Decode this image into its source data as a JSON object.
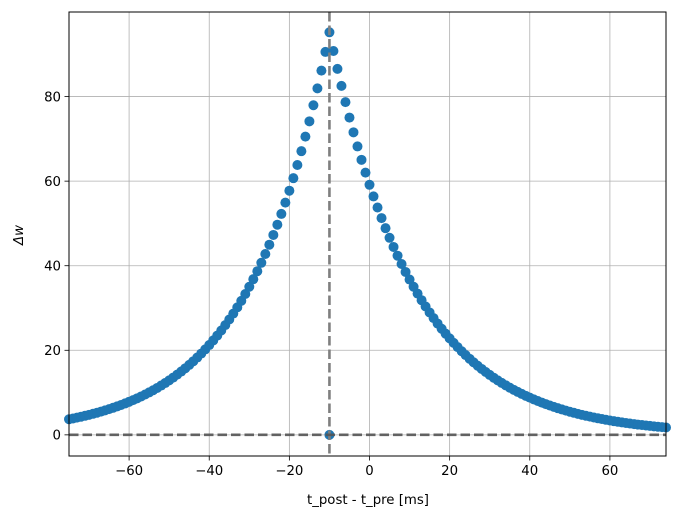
{
  "chart_data": {
    "type": "scatter",
    "title": "",
    "xlabel": "t_post - t_pre [ms]",
    "ylabel": "Δw",
    "xlim": [
      -75,
      74
    ],
    "ylim": [
      -5,
      100
    ],
    "xticks": [
      -60,
      -40,
      -20,
      0,
      20,
      40,
      60
    ],
    "yticks": [
      0,
      20,
      40,
      60,
      80
    ],
    "xtick_labels": [
      "−60",
      "−40",
      "−20",
      "0",
      "20",
      "40",
      "60"
    ],
    "ytick_labels": [
      "0",
      "20",
      "40",
      "60",
      "80"
    ],
    "grid": true,
    "series": [
      {
        "marker_color": "#1f77b4",
        "curve": {
          "peak_x": -10,
          "peak_y": 95.2,
          "left_tau_ms": 20,
          "right_tau_ms": 21,
          "dt_ms": 1,
          "x_from": -75,
          "x_to": 74
        },
        "extra_points": [
          {
            "x": -10,
            "y": 0
          }
        ]
      }
    ],
    "reference_lines": [
      {
        "orientation": "vertical",
        "x": -10,
        "style": "dashed",
        "color": "#7f7f7f"
      },
      {
        "orientation": "horizontal",
        "y": 0,
        "style": "dashed",
        "color": "#555555"
      }
    ]
  }
}
